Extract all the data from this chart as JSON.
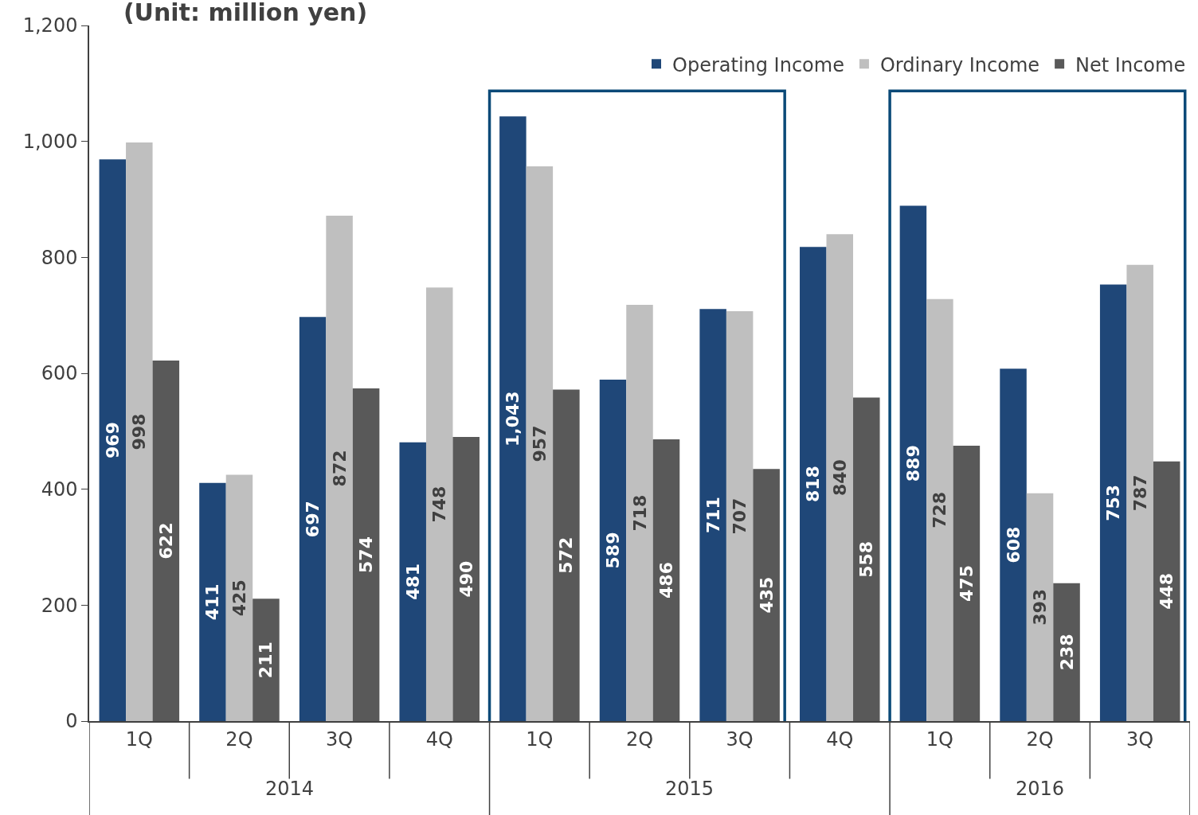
{
  "chart_data": {
    "type": "bar",
    "title": "(Unit: million yen)",
    "categories": [
      "1Q",
      "2Q",
      "3Q",
      "4Q",
      "1Q",
      "2Q",
      "3Q",
      "4Q",
      "1Q",
      "2Q",
      "3Q"
    ],
    "series": [
      {
        "name": "Operating Income",
        "color": "#1f4778",
        "values": [
          969,
          411,
          697,
          481,
          1043,
          589,
          711,
          818,
          889,
          608,
          753
        ],
        "value_labels": [
          "969",
          "411",
          "697",
          "481",
          "1,043",
          "589",
          "711",
          "818",
          "889",
          "608",
          "753"
        ]
      },
      {
        "name": "Ordinary Income",
        "color": "#bfbfbf",
        "values": [
          998,
          425,
          872,
          748,
          957,
          718,
          707,
          840,
          728,
          393,
          787
        ],
        "value_labels": [
          "998",
          "425",
          "872",
          "748",
          "957",
          "718",
          "707",
          "840",
          "728",
          "393",
          "787"
        ]
      },
      {
        "name": "Net Income",
        "color": "#595959",
        "values": [
          622,
          211,
          574,
          490,
          572,
          486,
          435,
          558,
          475,
          238,
          448
        ],
        "value_labels": [
          "622",
          "211",
          "574",
          "490",
          "572",
          "486",
          "435",
          "558",
          "475",
          "238",
          "448"
        ]
      }
    ],
    "ylim": [
      0,
      1200
    ],
    "yticks": [
      0,
      200,
      400,
      600,
      800,
      {
        "value": 1000,
        "label": "1,000"
      },
      {
        "value": 1200,
        "label": "1,200"
      }
    ],
    "grid": false,
    "legend": "top right",
    "annotations": [
      "2014",
      "2015",
      "2016"
    ]
  }
}
